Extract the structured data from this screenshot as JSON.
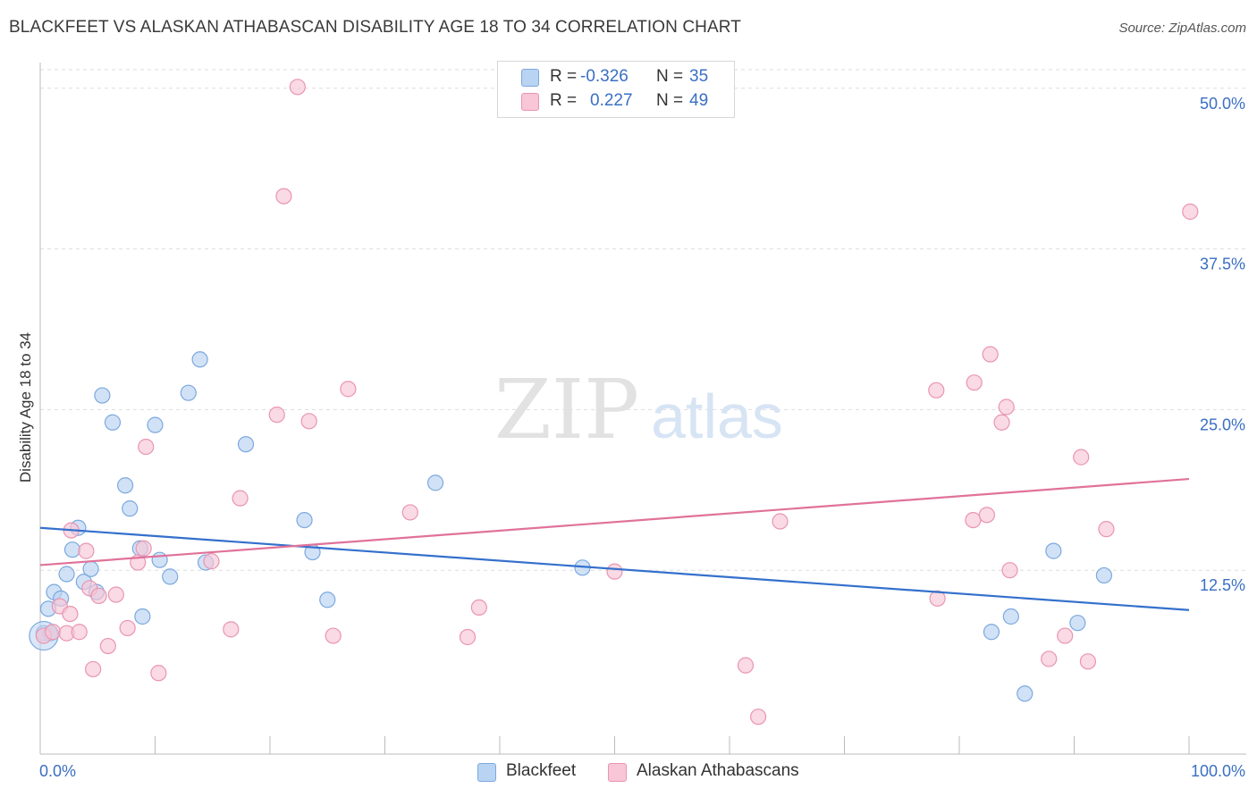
{
  "title": "BLACKFEET VS ALASKAN ATHABASCAN DISABILITY AGE 18 TO 34 CORRELATION CHART",
  "source": "Source: ZipAtlas.com",
  "watermark": {
    "zip": "ZIP",
    "atlas": "atlas"
  },
  "legend_top": {
    "rows": [
      {
        "r_label": "R =",
        "r_value": "-0.326",
        "n_label": "N =",
        "n_value": "35"
      },
      {
        "r_label": "R =",
        "r_value": "0.227",
        "n_label": "N =",
        "n_value": "49"
      }
    ]
  },
  "legend_bottom": {
    "items": [
      "Blackfeet",
      "Alaskan Athabascans"
    ]
  },
  "colors": {
    "blackfeet_fill": "#b9d3f3",
    "blackfeet_stroke": "#7ca8de",
    "blackfeet_line": "#3470cc",
    "athabascan_fill": "#f8c6d6",
    "athabascan_stroke": "#e995b2",
    "athabascan_line": "#e0729a",
    "tick_label": "#3a6fc4",
    "grid": "#dddddd"
  },
  "chart_data": {
    "type": "scatter",
    "title": "BLACKFEET VS ALASKAN ATHABASCAN DISABILITY AGE 18 TO 34 CORRELATION CHART",
    "xlabel": "",
    "ylabel": "Disability Age 18 to 34",
    "xlim": [
      0,
      100
    ],
    "ylim": [
      0,
      52
    ],
    "x_tick_labels": [
      "0.0%",
      "100.0%"
    ],
    "y_ticks": [
      12.5,
      25.0,
      37.5,
      50.0
    ],
    "y_tick_labels": [
      "12.5%",
      "25.0%",
      "37.5%",
      "50.0%"
    ],
    "grid": "horizontal dashed",
    "legend_position": "top-center",
    "series": [
      {
        "name": "Blackfeet",
        "r": -0.326,
        "n": 35,
        "trend": {
          "x": [
            0,
            100
          ],
          "y": [
            15.8,
            9.4
          ]
        },
        "points": [
          [
            0.3,
            7.6
          ],
          [
            0.7,
            9.5
          ],
          [
            1.2,
            10.8
          ],
          [
            1.8,
            10.3
          ],
          [
            2.3,
            12.2
          ],
          [
            2.8,
            14.1
          ],
          [
            3.3,
            15.8
          ],
          [
            3.8,
            11.6
          ],
          [
            4.4,
            12.6
          ],
          [
            4.9,
            10.8
          ],
          [
            5.4,
            26.1
          ],
          [
            6.3,
            24.0
          ],
          [
            7.4,
            19.1
          ],
          [
            7.8,
            17.3
          ],
          [
            8.7,
            14.2
          ],
          [
            8.9,
            8.9
          ],
          [
            10.0,
            23.8
          ],
          [
            10.4,
            13.3
          ],
          [
            11.3,
            12.0
          ],
          [
            12.9,
            26.3
          ],
          [
            13.9,
            28.9
          ],
          [
            14.4,
            13.1
          ],
          [
            17.9,
            22.3
          ],
          [
            23.0,
            16.4
          ],
          [
            23.7,
            13.9
          ],
          [
            25.0,
            10.2
          ],
          [
            34.4,
            19.3
          ],
          [
            47.2,
            12.7
          ],
          [
            82.8,
            7.7
          ],
          [
            84.5,
            8.9
          ],
          [
            85.7,
            2.9
          ],
          [
            88.2,
            14.0
          ],
          [
            90.3,
            8.4
          ],
          [
            92.6,
            12.1
          ],
          [
            0.9,
            7.6
          ]
        ]
      },
      {
        "name": "Alaskan Athabascans",
        "r": 0.227,
        "n": 49,
        "trend": {
          "x": [
            0,
            100
          ],
          "y": [
            12.9,
            19.6
          ]
        },
        "points": [
          [
            0.3,
            7.4
          ],
          [
            1.1,
            7.7
          ],
          [
            1.7,
            9.7
          ],
          [
            2.3,
            7.6
          ],
          [
            2.6,
            9.1
          ],
          [
            2.7,
            15.6
          ],
          [
            3.4,
            7.7
          ],
          [
            4.0,
            14.0
          ],
          [
            4.3,
            11.1
          ],
          [
            4.6,
            4.8
          ],
          [
            5.1,
            10.5
          ],
          [
            5.9,
            6.6
          ],
          [
            6.6,
            10.6
          ],
          [
            7.6,
            8.0
          ],
          [
            8.5,
            13.1
          ],
          [
            9.0,
            14.2
          ],
          [
            9.2,
            22.1
          ],
          [
            10.3,
            4.5
          ],
          [
            14.9,
            13.2
          ],
          [
            16.6,
            7.9
          ],
          [
            17.4,
            18.1
          ],
          [
            20.6,
            24.6
          ],
          [
            21.2,
            41.6
          ],
          [
            22.4,
            50.1
          ],
          [
            23.4,
            24.1
          ],
          [
            25.5,
            7.4
          ],
          [
            26.8,
            26.6
          ],
          [
            32.2,
            17.0
          ],
          [
            37.2,
            7.3
          ],
          [
            38.2,
            9.6
          ],
          [
            50.0,
            12.4
          ],
          [
            61.4,
            5.1
          ],
          [
            62.5,
            1.1
          ],
          [
            64.4,
            16.3
          ],
          [
            78.0,
            26.5
          ],
          [
            78.1,
            10.3
          ],
          [
            81.2,
            16.4
          ],
          [
            81.3,
            27.1
          ],
          [
            82.4,
            16.8
          ],
          [
            82.7,
            29.3
          ],
          [
            83.7,
            24.0
          ],
          [
            84.1,
            25.2
          ],
          [
            84.4,
            12.5
          ],
          [
            87.8,
            5.6
          ],
          [
            89.2,
            7.4
          ],
          [
            90.6,
            21.3
          ],
          [
            91.2,
            5.4
          ],
          [
            92.8,
            15.7
          ],
          [
            100.1,
            40.4
          ]
        ]
      }
    ]
  }
}
